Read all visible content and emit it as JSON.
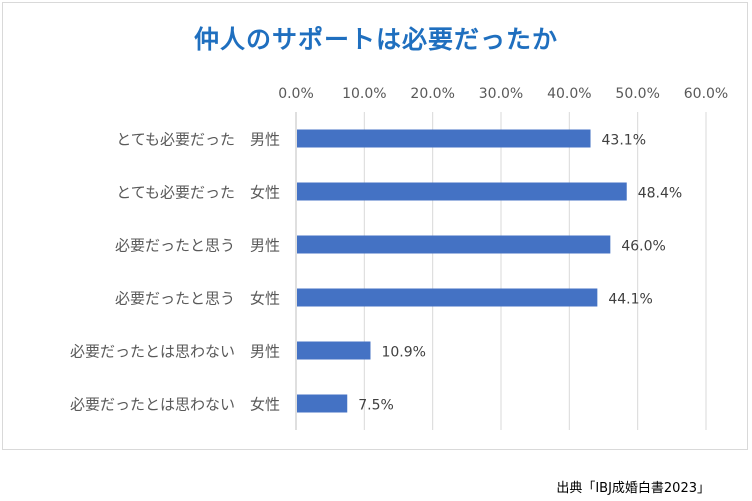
{
  "chart_data": {
    "type": "bar",
    "orientation": "horizontal",
    "title": "仲人のサポートは必要だったか",
    "xlabel": "",
    "ylabel": "",
    "xlim": [
      0,
      60
    ],
    "ticks": [
      "0.0%",
      "10.0%",
      "20.0%",
      "30.0%",
      "40.0%",
      "50.0%",
      "60.0%"
    ],
    "tick_values": [
      0,
      10,
      20,
      30,
      40,
      50,
      60
    ],
    "tick_position": "top",
    "grid": true,
    "legend": "none",
    "categories": [
      "とても必要だった　男性",
      "とても必要だった　女性",
      "必要だったと思う　男性",
      "必要だったと思う　女性",
      "必要だったとは思わない　男性",
      "必要だったとは思わない　女性"
    ],
    "values": [
      43.1,
      48.4,
      46.0,
      44.1,
      10.9,
      7.5
    ],
    "data_labels": [
      "43.1%",
      "48.4%",
      "46.0%",
      "44.1%",
      "10.9%",
      "7.5%"
    ],
    "bar_color": "#4472c4"
  },
  "source_note": "出典「IBJ成婚白書2023」"
}
